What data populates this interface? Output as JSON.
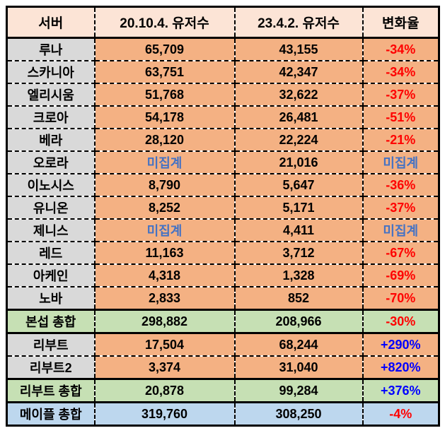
{
  "table": {
    "headers": {
      "server": "서버",
      "users_2020": "20.10.4. 유저수",
      "users_2023": "23.4.2. 유저수",
      "change": "변화율"
    },
    "rows": [
      {
        "name": "루나",
        "users_2020": "65,709",
        "users_2023": "43,155",
        "change": "-34%"
      },
      {
        "name": "스카니아",
        "users_2020": "63,751",
        "users_2023": "42,347",
        "change": "-34%"
      },
      {
        "name": "엘리시움",
        "users_2020": "51,768",
        "users_2023": "32,622",
        "change": "-37%"
      },
      {
        "name": "크로아",
        "users_2020": "54,178",
        "users_2023": "26,481",
        "change": "-51%"
      },
      {
        "name": "베라",
        "users_2020": "28,120",
        "users_2023": "22,224",
        "change": "-21%"
      },
      {
        "name": "오로라",
        "users_2020": "미집계",
        "users_2023": "21,016",
        "change": "미집계"
      },
      {
        "name": "이노시스",
        "users_2020": "8,790",
        "users_2023": "5,647",
        "change": "-36%"
      },
      {
        "name": "유니온",
        "users_2020": "8,252",
        "users_2023": "5,171",
        "change": "-37%"
      },
      {
        "name": "제니스",
        "users_2020": "미집계",
        "users_2023": "4,411",
        "change": "미집계"
      },
      {
        "name": "레드",
        "users_2020": "11,163",
        "users_2023": "3,712",
        "change": "-67%"
      },
      {
        "name": "아케인",
        "users_2020": "4,318",
        "users_2023": "1,328",
        "change": "-69%"
      },
      {
        "name": "노바",
        "users_2020": "2,833",
        "users_2023": "852",
        "change": "-70%"
      },
      {
        "name": "본섭 총합",
        "users_2020": "298,882",
        "users_2023": "208,966",
        "change": "-30%"
      },
      {
        "name": "리부트",
        "users_2020": "17,504",
        "users_2023": "68,244",
        "change": "+290%"
      },
      {
        "name": "리부트2",
        "users_2020": "3,374",
        "users_2023": "31,040",
        "change": "+820%"
      },
      {
        "name": "리부트 총합",
        "users_2020": "20,878",
        "users_2023": "99,284",
        "change": "+376%"
      },
      {
        "name": "메이플 총합",
        "users_2020": "319,760",
        "users_2023": "308,250",
        "change": "-4%"
      }
    ]
  },
  "colors": {
    "header_bg": "#FCE4D6",
    "server_name_bg": "#D9D9D9",
    "data_cell_bg": "#F4B183",
    "subtotal_row_bg": "#C6E0B4",
    "grand_total_row_bg": "#BDD7EE",
    "negative_change_text": "#FF0000",
    "positive_change_text": "#0000FF",
    "not_counted_text": "#4472C4",
    "border": "#000000"
  },
  "chart_data": {
    "type": "table",
    "title": "",
    "columns": [
      "서버",
      "20.10.4. 유저수",
      "23.4.2. 유저수",
      "변화율"
    ],
    "rows": [
      [
        "루나",
        65709,
        43155,
        "-34%"
      ],
      [
        "스카니아",
        63751,
        42347,
        "-34%"
      ],
      [
        "엘리시움",
        51768,
        32622,
        "-37%"
      ],
      [
        "크로아",
        54178,
        26481,
        "-51%"
      ],
      [
        "베라",
        28120,
        22224,
        "-21%"
      ],
      [
        "오로라",
        "미집계",
        21016,
        "미집계"
      ],
      [
        "이노시스",
        8790,
        5647,
        "-36%"
      ],
      [
        "유니온",
        8252,
        5171,
        "-37%"
      ],
      [
        "제니스",
        "미집계",
        4411,
        "미집계"
      ],
      [
        "레드",
        11163,
        3712,
        "-67%"
      ],
      [
        "아케인",
        4318,
        1328,
        "-69%"
      ],
      [
        "노바",
        2833,
        852,
        "-70%"
      ],
      [
        "본섭 총합",
        298882,
        208966,
        "-30%"
      ],
      [
        "리부트",
        17504,
        68244,
        "+290%"
      ],
      [
        "리부트2",
        3374,
        31040,
        "+820%"
      ],
      [
        "리부트 총합",
        20878,
        99284,
        "+376%"
      ],
      [
        "메이플 총합",
        319760,
        308250,
        "-4%"
      ]
    ]
  }
}
